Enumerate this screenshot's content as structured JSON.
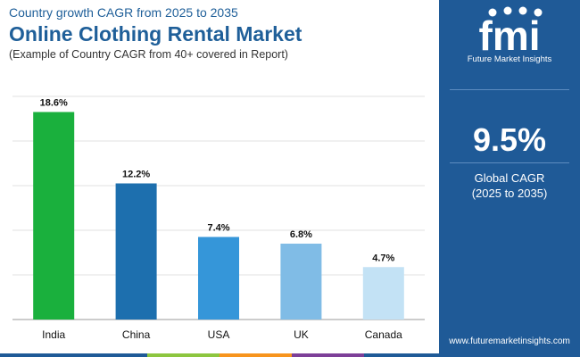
{
  "header": {
    "subtitle": "Country growth CAGR from 2025 to 2035",
    "title": "Online Clothing Rental Market",
    "note": "(Example of Country CAGR from 40+ covered in Report)"
  },
  "sidebar": {
    "logo_text": "fmi",
    "brand_name": "Future Market Insights",
    "global_value": "9.5%",
    "global_label": "Global CAGR",
    "global_period": "(2025 to 2035)",
    "website": "www.futuremarketinsights.com"
  },
  "colors": {
    "title": "#1f5f99",
    "sidebar_bg": "#1f5a97",
    "bottom_bar": [
      "#1f5a97",
      "#8dc63f",
      "#f7941d",
      "#7d3f98",
      "#1f5a97"
    ]
  },
  "chart_data": {
    "type": "bar",
    "categories": [
      "India",
      "China",
      "USA",
      "UK",
      "Canada"
    ],
    "values": [
      18.6,
      12.2,
      7.4,
      6.8,
      4.7
    ],
    "value_labels": [
      "18.6%",
      "12.2%",
      "7.4%",
      "6.8%",
      "4.7%"
    ],
    "bar_colors": [
      "#1ab03d",
      "#1d6fae",
      "#3596d9",
      "#80bce6",
      "#c3e2f5"
    ],
    "ylim": [
      0,
      20
    ],
    "grid": true,
    "title": "",
    "xlabel": "",
    "ylabel": ""
  }
}
